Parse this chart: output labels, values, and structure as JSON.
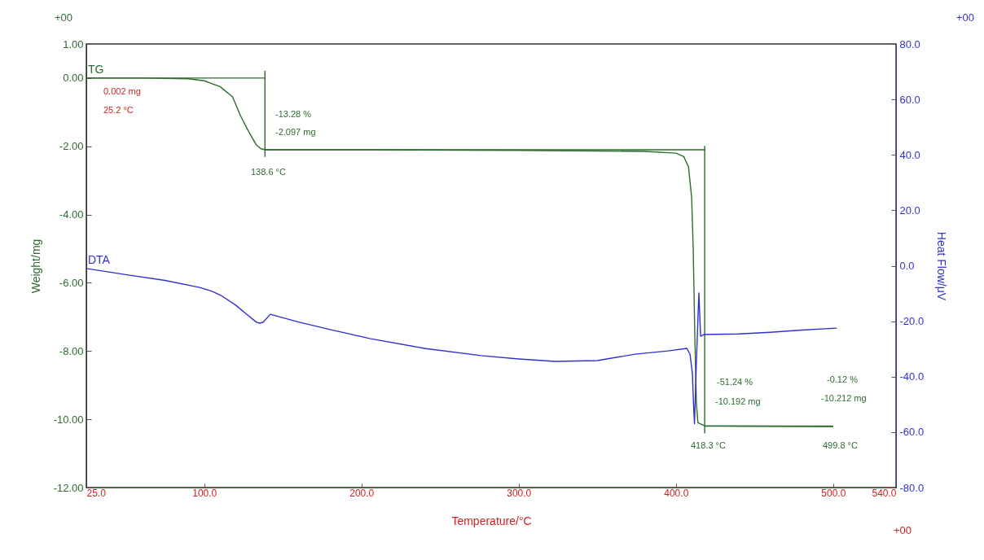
{
  "chart_data": {
    "type": "line",
    "xlabel": "Temperature/°C",
    "ylabel": "Weight/mg",
    "y2label": "Heat Flow/μV",
    "xlim": [
      25,
      540
    ],
    "xticks": [
      {
        "value": 25,
        "label": "25.0"
      },
      {
        "value": 100,
        "label": "100.0"
      },
      {
        "value": 200,
        "label": "200.0"
      },
      {
        "value": 300,
        "label": "300.0"
      },
      {
        "value": 400,
        "label": "400.0"
      },
      {
        "value": 500,
        "label": "500.0"
      },
      {
        "value": 540,
        "label": "540.0"
      }
    ],
    "ylim": [
      -12,
      1
    ],
    "yticks": [
      {
        "value": 1,
        "label": "1.00"
      },
      {
        "value": 0,
        "label": "0.00"
      },
      {
        "value": -2,
        "label": "-2.00"
      },
      {
        "value": -4,
        "label": "-4.00"
      },
      {
        "value": -6,
        "label": "-6.00"
      },
      {
        "value": -8,
        "label": "-8.00"
      },
      {
        "value": -10,
        "label": "-10.00"
      },
      {
        "value": -12,
        "label": "-12.00"
      }
    ],
    "y2lim": [
      -80,
      80
    ],
    "y2ticks": [
      {
        "value": 80,
        "label": "80.0"
      },
      {
        "value": 60,
        "label": "60.0"
      },
      {
        "value": 40,
        "label": "40.0"
      },
      {
        "value": 20,
        "label": "20.0"
      },
      {
        "value": 0,
        "label": "0.0"
      },
      {
        "value": -20,
        "label": "-20.0"
      },
      {
        "value": -40,
        "label": "-40.0"
      },
      {
        "value": -60,
        "label": "-60.0"
      },
      {
        "value": -80,
        "label": "-80.0"
      }
    ],
    "series": [
      {
        "name": "TG",
        "color": "#2e6b2e",
        "x": [
          25,
          60,
          90,
          100,
          110,
          118,
          123,
          128,
          133,
          136,
          138.6,
          200,
          300,
          380,
          400,
          405,
          408,
          410,
          411,
          412,
          413,
          414,
          418.3,
          440,
          499.8
        ],
        "values": [
          0,
          0,
          -0.02,
          -0.08,
          -0.25,
          -0.55,
          -1.1,
          -1.55,
          -1.95,
          -2.07,
          -2.1,
          -2.1,
          -2.12,
          -2.15,
          -2.2,
          -2.3,
          -2.6,
          -3.5,
          -5.0,
          -7.5,
          -9.5,
          -10.1,
          -10.19,
          -10.2,
          -10.21
        ]
      },
      {
        "color": "#2e6b2e",
        "x": [
          25,
          138.6
        ],
        "values": [
          0,
          0
        ]
      },
      {
        "color": "#2e6b2e",
        "x": [
          138.6,
          138.6
        ],
        "values": [
          0.2,
          -2.3
        ]
      },
      {
        "color": "#2e6b2e",
        "x": [
          138.6,
          418.3
        ],
        "values": [
          -2.1,
          -2.1
        ]
      },
      {
        "color": "#2e6b2e",
        "x": [
          418.3,
          418.3
        ],
        "values": [
          -2.0,
          -10.4
        ]
      },
      {
        "color": "#2e6b2e",
        "x": [
          418.3,
          499.8
        ],
        "values": [
          -10.2,
          -10.2
        ]
      },
      {
        "name": "DTA",
        "color": "#3030d0",
        "axis": "y2",
        "x": [
          25,
          50,
          75,
          97,
          105,
          111.5,
          120,
          128,
          133,
          135,
          137.4,
          142,
          160,
          180,
          205.8,
          240,
          276,
          300,
          323,
          350,
          374,
          395,
          407,
          409,
          410.5,
          411.2,
          411.8,
          413,
          414.6,
          415.7,
          418,
          440,
          460,
          480,
          502
        ],
        "values": [
          -1.0,
          -3.2,
          -5.3,
          -7.8,
          -9.2,
          -11.0,
          -14.2,
          -18.0,
          -20.3,
          -20.7,
          -20.4,
          -17.5,
          -20.3,
          -23.0,
          -26.3,
          -29.8,
          -32.4,
          -33.6,
          -34.5,
          -34.2,
          -31.9,
          -30.7,
          -29.8,
          -32.0,
          -39.0,
          -50.0,
          -57.0,
          -35.0,
          -9.8,
          -25.4,
          -24.8,
          -24.6,
          -24.0,
          -23.2,
          -22.5
        ]
      }
    ],
    "annotations": [
      "+00",
      "+00",
      "+00",
      "0.002 mg",
      "25.2 °C",
      "-13.28 %",
      "-2.097 mg",
      "138.6 °C",
      "-51.24 %",
      "-10.192 mg",
      "418.3 °C",
      "-0.12 %",
      "-10.212 mg",
      "499.8 °C"
    ]
  }
}
